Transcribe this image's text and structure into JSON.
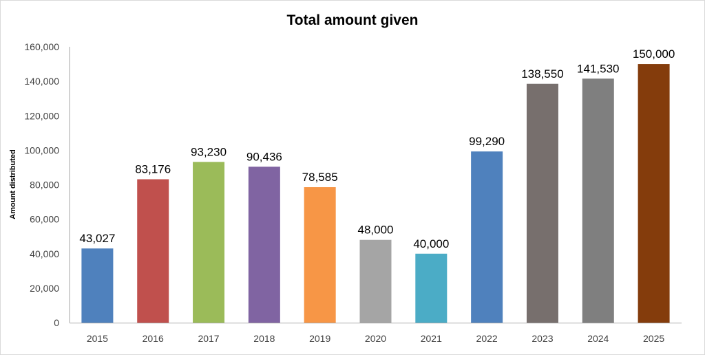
{
  "chart_data": {
    "type": "bar",
    "title": "Total amount given",
    "xlabel": "",
    "ylabel": "Amount distributed",
    "ylim": [
      0,
      160000
    ],
    "yticks": [
      0,
      20000,
      40000,
      60000,
      80000,
      100000,
      120000,
      140000,
      160000
    ],
    "ytick_labels": [
      "0",
      "20,000",
      "40,000",
      "60,000",
      "80,000",
      "100,000",
      "120,000",
      "140,000",
      "160,000"
    ],
    "grid": false,
    "categories": [
      "2015",
      "2016",
      "2017",
      "2018",
      "2019",
      "2020",
      "2021",
      "2022",
      "2023",
      "2024",
      "2025"
    ],
    "values": [
      43027,
      83176,
      93230,
      90436,
      78585,
      48000,
      40000,
      99290,
      138550,
      141530,
      150000
    ],
    "data_labels": [
      "43,027",
      "83,176",
      "93,230",
      "90,436",
      "78,585",
      "48,000",
      "40,000",
      "99,290",
      "138,550",
      "141,530",
      "150,000"
    ],
    "colors": [
      "#4F81BD",
      "#C0504D",
      "#9BBB59",
      "#8064A2",
      "#F79646",
      "#A5A5A5",
      "#4BACC6",
      "#4F81BD",
      "#776F6D",
      "#7F7F7F",
      "#843C0C"
    ]
  }
}
